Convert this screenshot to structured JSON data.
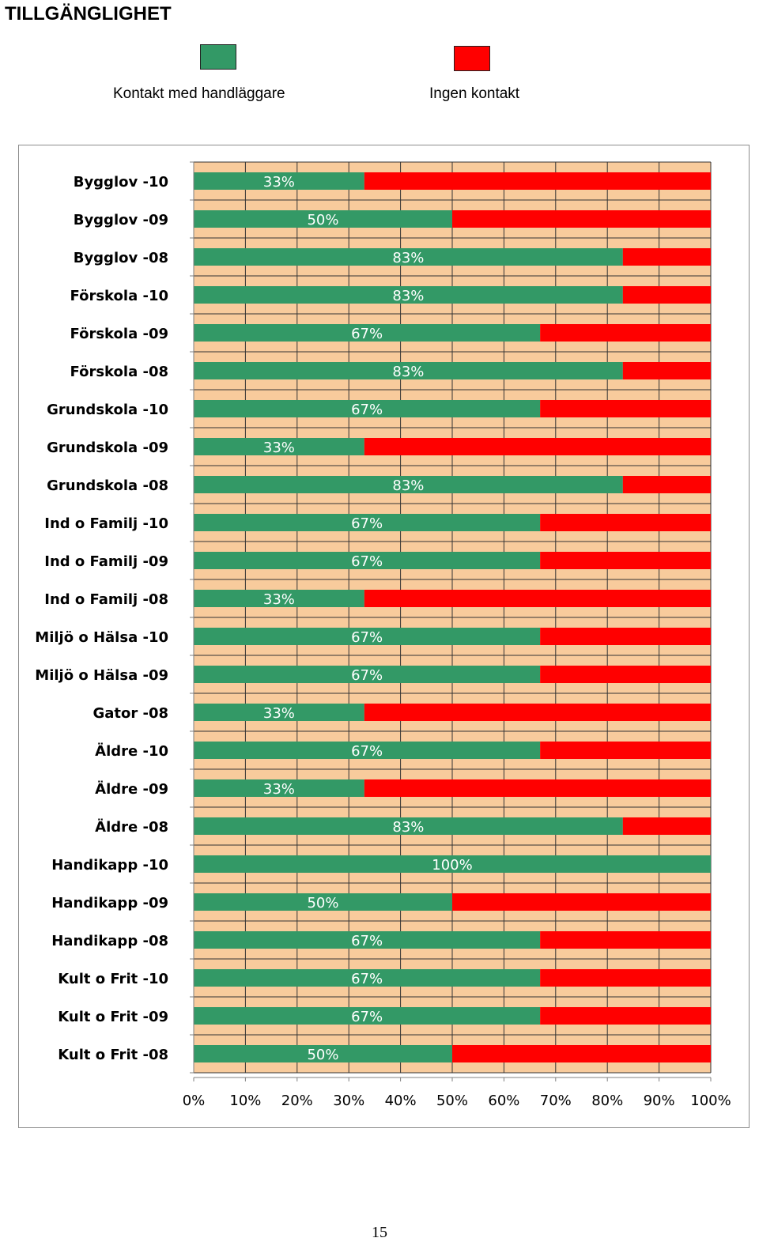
{
  "page": {
    "title": "TILLGÄNGLIGHET",
    "page_number": "15"
  },
  "colors": {
    "contact": "#339966",
    "no_contact": "#ff0000",
    "plot_background": "#f8cb9c",
    "grid": "#333333"
  },
  "legend": [
    {
      "label": "Kontakt med handläggare",
      "color": "#339966"
    },
    {
      "label": "Ingen kontakt",
      "color": "#ff0000"
    }
  ],
  "chart_data": {
    "type": "bar",
    "orientation": "horizontal",
    "stacked": true,
    "normalized_percent": true,
    "title": "",
    "xlabel": "",
    "ylabel": "",
    "xlim": [
      0,
      100
    ],
    "x_ticks": [
      "0%",
      "10%",
      "20%",
      "30%",
      "40%",
      "50%",
      "60%",
      "70%",
      "80%",
      "90%",
      "100%"
    ],
    "grid": true,
    "legend_position": "top",
    "categories": [
      "Bygglov -10",
      "Bygglov -09",
      "Bygglov -08",
      "Förskola -10",
      "Förskola -09",
      "Förskola -08",
      "Grundskola -10",
      "Grundskola -09",
      "Grundskola -08",
      "Ind o Familj -10",
      "Ind o Familj -09",
      "Ind o Familj -08",
      "Miljö o Hälsa -10",
      "Miljö o Hälsa -09",
      "Gator -08",
      "Äldre -10",
      "Äldre -09",
      "Äldre -08",
      "Handikapp -10",
      "Handikapp -09",
      "Handikapp -08",
      "Kult o Frit -10",
      "Kult o Frit -09",
      "Kult o Frit -08"
    ],
    "series": [
      {
        "name": "Kontakt med handläggare",
        "values": [
          33,
          50,
          83,
          83,
          67,
          83,
          67,
          33,
          83,
          67,
          67,
          33,
          67,
          67,
          33,
          67,
          33,
          83,
          100,
          50,
          67,
          67,
          67,
          50
        ]
      },
      {
        "name": "Ingen kontakt",
        "values": [
          67,
          50,
          17,
          17,
          33,
          17,
          33,
          67,
          17,
          33,
          33,
          67,
          33,
          33,
          67,
          33,
          67,
          17,
          0,
          50,
          33,
          33,
          33,
          50
        ]
      }
    ],
    "data_labels": [
      "33%",
      "50%",
      "83%",
      "83%",
      "67%",
      "83%",
      "67%",
      "33%",
      "83%",
      "67%",
      "67%",
      "33%",
      "67%",
      "67%",
      "33%",
      "67%",
      "33%",
      "83%",
      "100%",
      "50%",
      "67%",
      "67%",
      "67%",
      "50%"
    ]
  }
}
